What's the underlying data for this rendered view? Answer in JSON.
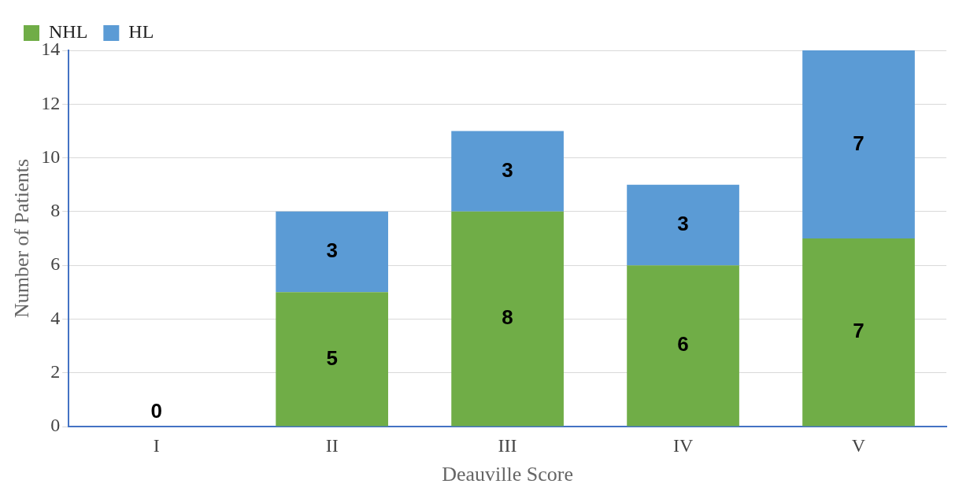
{
  "chart_data": {
    "type": "bar",
    "xlabel": "Deauville Score",
    "ylabel": "Number of Patients",
    "categories": [
      "I",
      "II",
      "III",
      "IV",
      "V"
    ],
    "stacked": true,
    "series": [
      {
        "name": "NHL",
        "color": "#70ad47",
        "values": [
          0,
          5,
          8,
          6,
          7
        ],
        "value_labels": [
          "0",
          "5",
          "8",
          "6",
          "7"
        ]
      },
      {
        "name": "HL",
        "color": "#5b9bd5",
        "values": [
          0,
          3,
          3,
          3,
          7
        ],
        "value_labels": [
          null,
          "3",
          "3",
          "3",
          "7"
        ]
      }
    ],
    "ylim": [
      0,
      14
    ],
    "yticks": [
      0,
      2,
      4,
      6,
      8,
      10,
      12,
      14
    ],
    "grid": "y",
    "legend": "top left"
  }
}
